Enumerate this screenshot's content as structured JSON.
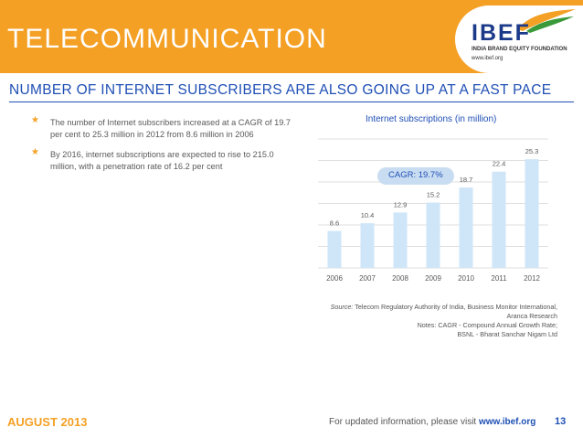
{
  "header": {
    "title": "TELECOMMUNICATION",
    "logo_text": "IBEF",
    "logo_tagline": "INDIA BRAND EQUITY FOUNDATION",
    "logo_url": "www.ibef.org",
    "band_color": "#f4a025"
  },
  "subtitle": "NUMBER OF INTERNET SUBSCRIBERS ARE ALSO GOING UP AT A FAST PACE",
  "bullets": [
    "The number of Internet subscribers increased at a CAGR of 19.7 per cent to 25.3 million in 2012 from 8.6 million in 2006",
    "By 2016, internet subscriptions are expected to rise to 215.0 million, with a penetration rate of 16.2 per cent"
  ],
  "chart_data": {
    "type": "bar",
    "title": "Internet subscriptions (in million)",
    "categories": [
      "2006",
      "2007",
      "2008",
      "2009",
      "2010",
      "2011",
      "2012"
    ],
    "values": [
      8.6,
      10.4,
      12.9,
      15.2,
      18.7,
      22.4,
      25.3
    ],
    "ylim": [
      0,
      30
    ],
    "grid": true,
    "annotation": "CAGR: 19.7%",
    "bar_color": "#cfe6f9",
    "grid_color": "#c0c0c0",
    "label_color": "#595959"
  },
  "source": {
    "prefix": "Source:",
    "text": "Telecom Regulatory Authority of India, Business Monitor International, Aranca Research",
    "notes_line1": "Notes: CAGR - Compound Annual Growth Rate;",
    "notes_line2": "BSNL - Bharat Sanchar Nigam Ltd"
  },
  "footer": {
    "date": "AUGUST 2013",
    "info": "For updated information, please visit",
    "url": "www.ibef.org",
    "page": "13"
  }
}
